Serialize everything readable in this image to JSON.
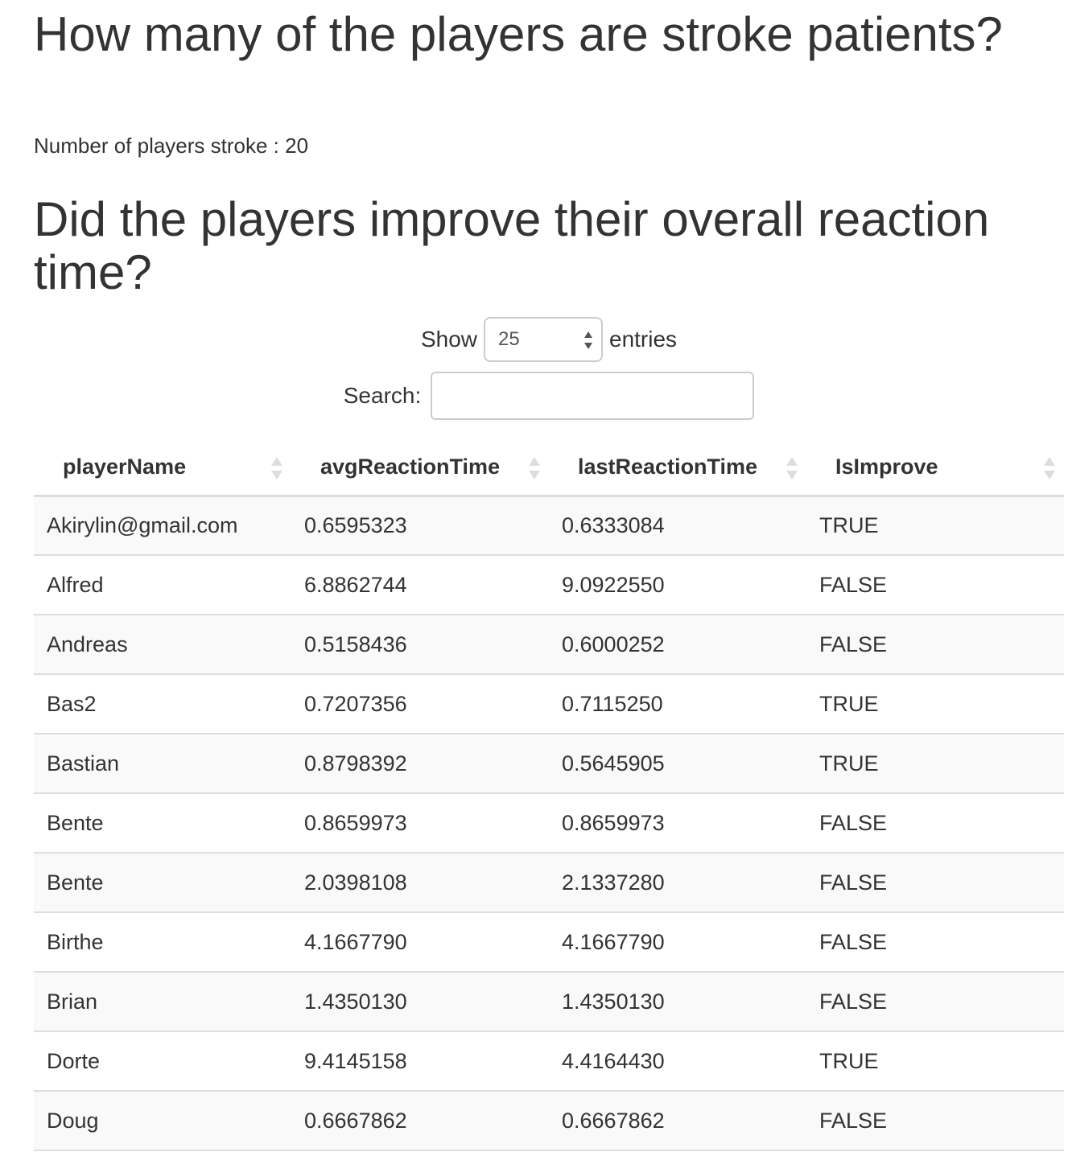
{
  "sections": {
    "title1": "How many of the players are stroke patients?",
    "stroke_count_text": "Number of players stroke : 20",
    "title2": "Did the players improve their overall reaction time?"
  },
  "controls": {
    "show_label": "Show",
    "entries_value": "25",
    "entries_label": "entries",
    "search_label": "Search:",
    "search_value": ""
  },
  "table": {
    "columns": [
      "playerName",
      "avgReactionTime",
      "lastReactionTime",
      "IsImprove"
    ],
    "rows": [
      [
        "Akirylin@gmail.com",
        "0.6595323",
        "0.6333084",
        "TRUE"
      ],
      [
        "Alfred",
        "6.8862744",
        "9.0922550",
        "FALSE"
      ],
      [
        "Andreas",
        "0.5158436",
        "0.6000252",
        "FALSE"
      ],
      [
        "Bas2",
        "0.7207356",
        "0.7115250",
        "TRUE"
      ],
      [
        "Bastian",
        "0.8798392",
        "0.5645905",
        "TRUE"
      ],
      [
        "Bente",
        "0.8659973",
        "0.8659973",
        "FALSE"
      ],
      [
        "Bente",
        "2.0398108",
        "2.1337280",
        "FALSE"
      ],
      [
        "Birthe",
        "4.1667790",
        "4.1667790",
        "FALSE"
      ],
      [
        "Brian",
        "1.4350130",
        "1.4350130",
        "FALSE"
      ],
      [
        "Dorte",
        "9.4145158",
        "4.4164430",
        "TRUE"
      ],
      [
        "Doug",
        "0.6667862",
        "0.6667862",
        "FALSE"
      ]
    ]
  },
  "icons": {
    "sort": "sort-both-icon",
    "select": "select-arrows-icon"
  }
}
